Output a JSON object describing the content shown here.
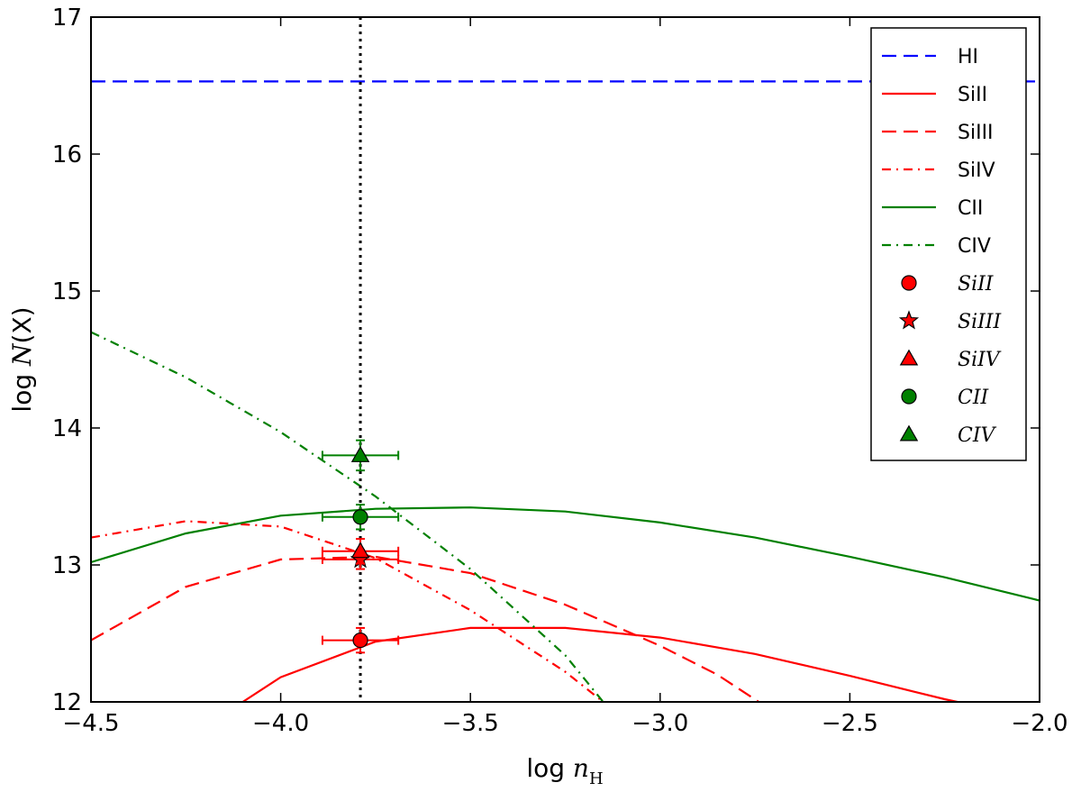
{
  "chart_data": {
    "type": "line",
    "xlabel": "log n_H",
    "ylabel": "log N(X)",
    "xlim": [
      -4.5,
      -2.0
    ],
    "ylim": [
      12,
      17
    ],
    "xticks": [
      "−4.5",
      "−4.0",
      "−3.5",
      "−3.0",
      "−2.5",
      "−2.0"
    ],
    "yticks": [
      "12",
      "13",
      "14",
      "15",
      "16",
      "17"
    ],
    "grid": false,
    "legend_position": "top-right",
    "vertical_line": {
      "x": -3.79,
      "style": "dotted",
      "color": "#000000"
    },
    "series": [
      {
        "name": "HI",
        "color": "#0000ff",
        "dash": "dashed",
        "x": [
          -4.5,
          -2.0
        ],
        "y": [
          16.53,
          16.53
        ]
      },
      {
        "name": "SiII",
        "color": "#ff0000",
        "dash": "solid",
        "x": [
          -4.1,
          -4.0,
          -3.75,
          -3.5,
          -3.25,
          -3.0,
          -2.75,
          -2.5,
          -2.25,
          -2.2
        ],
        "y": [
          12.0,
          12.18,
          12.44,
          12.54,
          12.54,
          12.47,
          12.35,
          12.19,
          12.02,
          11.99
        ]
      },
      {
        "name": "SiIII",
        "color": "#ff0000",
        "dash": "dashed",
        "x": [
          -4.5,
          -4.25,
          -4.0,
          -3.75,
          -3.5,
          -3.25,
          -3.0,
          -2.85,
          -2.74
        ],
        "y": [
          12.45,
          12.84,
          13.04,
          13.06,
          12.94,
          12.71,
          12.41,
          12.2,
          12.0
        ]
      },
      {
        "name": "SiIV",
        "color": "#ff0000",
        "dash": "dashdot",
        "x": [
          -4.5,
          -4.25,
          -4.0,
          -3.75,
          -3.5,
          -3.25,
          -3.15
        ],
        "y": [
          13.2,
          13.32,
          13.28,
          13.05,
          12.67,
          12.22,
          12.0
        ]
      },
      {
        "name": "CII",
        "color": "#008000",
        "dash": "solid",
        "x": [
          -4.5,
          -4.25,
          -4.0,
          -3.75,
          -3.5,
          -3.25,
          -3.0,
          -2.75,
          -2.5,
          -2.25,
          -2.0
        ],
        "y": [
          13.02,
          13.23,
          13.36,
          13.41,
          13.42,
          13.39,
          13.31,
          13.2,
          13.06,
          12.91,
          12.74
        ]
      },
      {
        "name": "CIV",
        "color": "#008000",
        "dash": "dashdot",
        "x": [
          -4.5,
          -4.25,
          -4.0,
          -3.75,
          -3.5,
          -3.25,
          -3.15
        ],
        "y": [
          14.7,
          14.37,
          13.97,
          13.5,
          12.97,
          12.34,
          12.0
        ]
      }
    ],
    "points": [
      {
        "name": "SiII",
        "marker": "circle",
        "color": "#ff0000",
        "x": -3.79,
        "y": 12.45,
        "xerr": 0.1,
        "yerr": 0.09
      },
      {
        "name": "SiIII",
        "marker": "star",
        "color": "#ff0000",
        "x": -3.79,
        "y": 13.04,
        "xerr": 0.1,
        "yerr": 0.07
      },
      {
        "name": "SiIV",
        "marker": "triangle",
        "color": "#ff0000",
        "x": -3.79,
        "y": 13.1,
        "xerr": 0.1,
        "yerr": 0.09
      },
      {
        "name": "CII",
        "marker": "circle",
        "color": "#008000",
        "x": -3.79,
        "y": 13.35,
        "xerr": 0.1,
        "yerr": 0.09
      },
      {
        "name": "CIV",
        "marker": "triangle",
        "color": "#008000",
        "x": -3.79,
        "y": 13.8,
        "xerr": 0.1,
        "yerr": 0.11
      }
    ],
    "legend": [
      {
        "label": "HI",
        "kind": "line",
        "series": 0
      },
      {
        "label": "SiII",
        "kind": "line",
        "series": 1
      },
      {
        "label": "SiIII",
        "kind": "line",
        "series": 2
      },
      {
        "label": "SiIV",
        "kind": "line",
        "series": 3
      },
      {
        "label": "CII",
        "kind": "line",
        "series": 4
      },
      {
        "label": "CIV",
        "kind": "line",
        "series": 5
      },
      {
        "label": "SiII",
        "kind": "marker",
        "point": 0
      },
      {
        "label": "SiIII",
        "kind": "marker",
        "point": 1
      },
      {
        "label": "SiIV",
        "kind": "marker",
        "point": 2
      },
      {
        "label": "CII",
        "kind": "marker",
        "point": 3
      },
      {
        "label": "CIV",
        "kind": "marker",
        "point": 4
      }
    ]
  }
}
